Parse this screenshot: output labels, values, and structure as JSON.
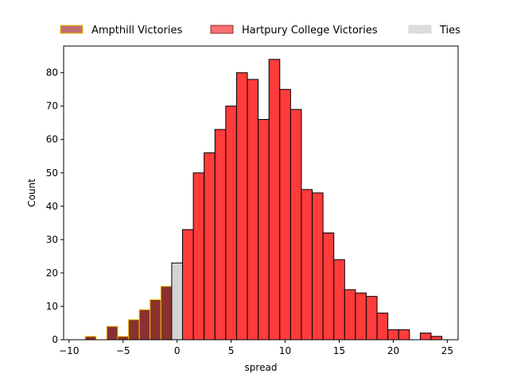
{
  "chart_data": {
    "type": "bar",
    "title": "",
    "xlabel": "spread",
    "ylabel": "Count",
    "xlim": [
      -10.5,
      26
    ],
    "ylim": [
      0,
      88
    ],
    "xticks": [
      -10,
      -5,
      0,
      5,
      10,
      15,
      20,
      25
    ],
    "yticks": [
      0,
      10,
      20,
      30,
      40,
      50,
      60,
      70,
      80
    ],
    "grid": false,
    "legend_position": "top, above plot",
    "series": [
      {
        "name": "Ampthill Victories",
        "color": "#8b3030",
        "edge_color": "#e6c200",
        "x": [
          -8,
          -6,
          -5,
          -4,
          -3,
          -2,
          -1
        ],
        "values": [
          1,
          4,
          1,
          6,
          9,
          12,
          16
        ]
      },
      {
        "name": "Ties",
        "color": "#d3d3d3",
        "edge_color": "#000000",
        "x": [
          0
        ],
        "values": [
          23
        ]
      },
      {
        "name": "Hartpury College Victories",
        "color": "#ff3b3b",
        "edge_color": "#000000",
        "x": [
          1,
          2,
          3,
          4,
          5,
          6,
          7,
          8,
          9,
          10,
          11,
          12,
          13,
          14,
          15,
          16,
          17,
          18,
          19,
          20,
          21,
          23,
          24
        ],
        "values": [
          33,
          50,
          56,
          63,
          70,
          80,
          78,
          66,
          84,
          75,
          69,
          45,
          44,
          32,
          24,
          15,
          14,
          13,
          8,
          3,
          3,
          2,
          1
        ]
      }
    ],
    "legend": [
      {
        "label": "Ampthill Victories",
        "color": "#c07070",
        "edge_color": "#e6c200"
      },
      {
        "label": "Hartpury College Victories",
        "color": "#ff7070",
        "edge_color": "#8b3030"
      },
      {
        "label": "Ties",
        "color": "#dcdcdc",
        "edge_color": "#dcdcdc"
      }
    ]
  }
}
